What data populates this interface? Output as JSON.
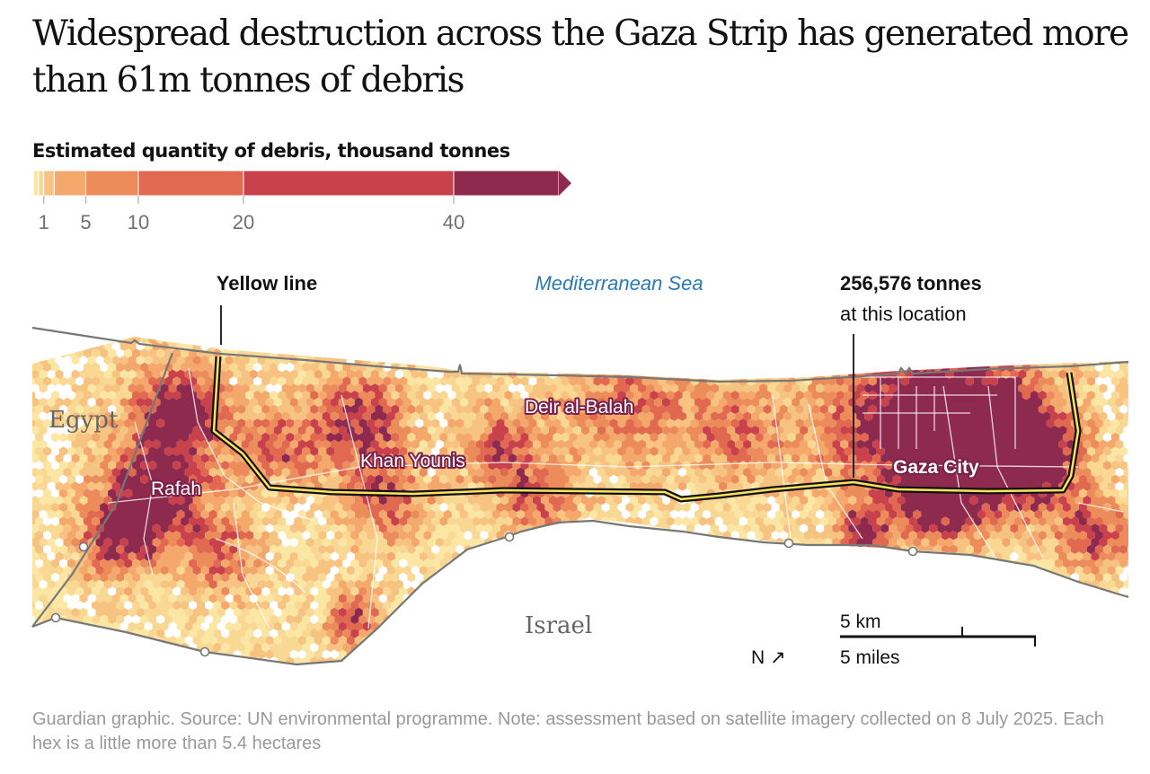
{
  "headline": "Widespread destruction across the Gaza Strip has generated more than 61m tonnes of debris",
  "legend": {
    "title": "Estimated quantity of debris, thousand tonnes",
    "scale_max": 50,
    "ticks": [
      {
        "value": 1,
        "label": "1"
      },
      {
        "value": 5,
        "label": "5"
      },
      {
        "value": 10,
        "label": "10"
      },
      {
        "value": 20,
        "label": "20"
      },
      {
        "value": 40,
        "label": "40"
      }
    ],
    "bins": [
      {
        "from": 0,
        "to": 0.5,
        "color": "#fbe6a4"
      },
      {
        "from": 0.5,
        "to": 1,
        "color": "#f9d894"
      },
      {
        "from": 1,
        "to": 2,
        "color": "#f7c381"
      },
      {
        "from": 2,
        "to": 5,
        "color": "#f4a86c"
      },
      {
        "from": 5,
        "to": 10,
        "color": "#ec8c5a"
      },
      {
        "from": 10,
        "to": 20,
        "color": "#e0694f"
      },
      {
        "from": 20,
        "to": 40,
        "color": "#c8414b"
      },
      {
        "from": 40,
        "to": 50,
        "color": "#8e2a4e"
      }
    ]
  },
  "map": {
    "sea_label": "Mediterranean Sea",
    "country_labels": {
      "egypt": "Egypt",
      "israel": "Israel"
    },
    "cities": [
      {
        "id": "rafah",
        "name": "Rafah"
      },
      {
        "id": "khan-younis",
        "name": "Khan Younis"
      },
      {
        "id": "deir-al-balah",
        "name": "Deir al-Balah"
      },
      {
        "id": "gaza-city",
        "name": "Gaza City"
      }
    ],
    "yellow_line_label": "Yellow line",
    "annotation": {
      "value": "256,576 tonnes",
      "caption": "at this location"
    },
    "scale_bar": {
      "km": "5 km",
      "miles": "5 miles"
    },
    "north_label": "N",
    "north_arrow": "↗",
    "colors": {
      "sea_label": "#2a7ab8",
      "border": "#777777",
      "yellow_line": "#ffe25c",
      "label_halo": "#7a2048"
    }
  },
  "footer": {
    "source": "Guardian graphic. Source: UN environmental programme. Note: assessment based on satellite imagery collected on 8 July 2025. Each hex is a little more than 5.4 hectares"
  }
}
